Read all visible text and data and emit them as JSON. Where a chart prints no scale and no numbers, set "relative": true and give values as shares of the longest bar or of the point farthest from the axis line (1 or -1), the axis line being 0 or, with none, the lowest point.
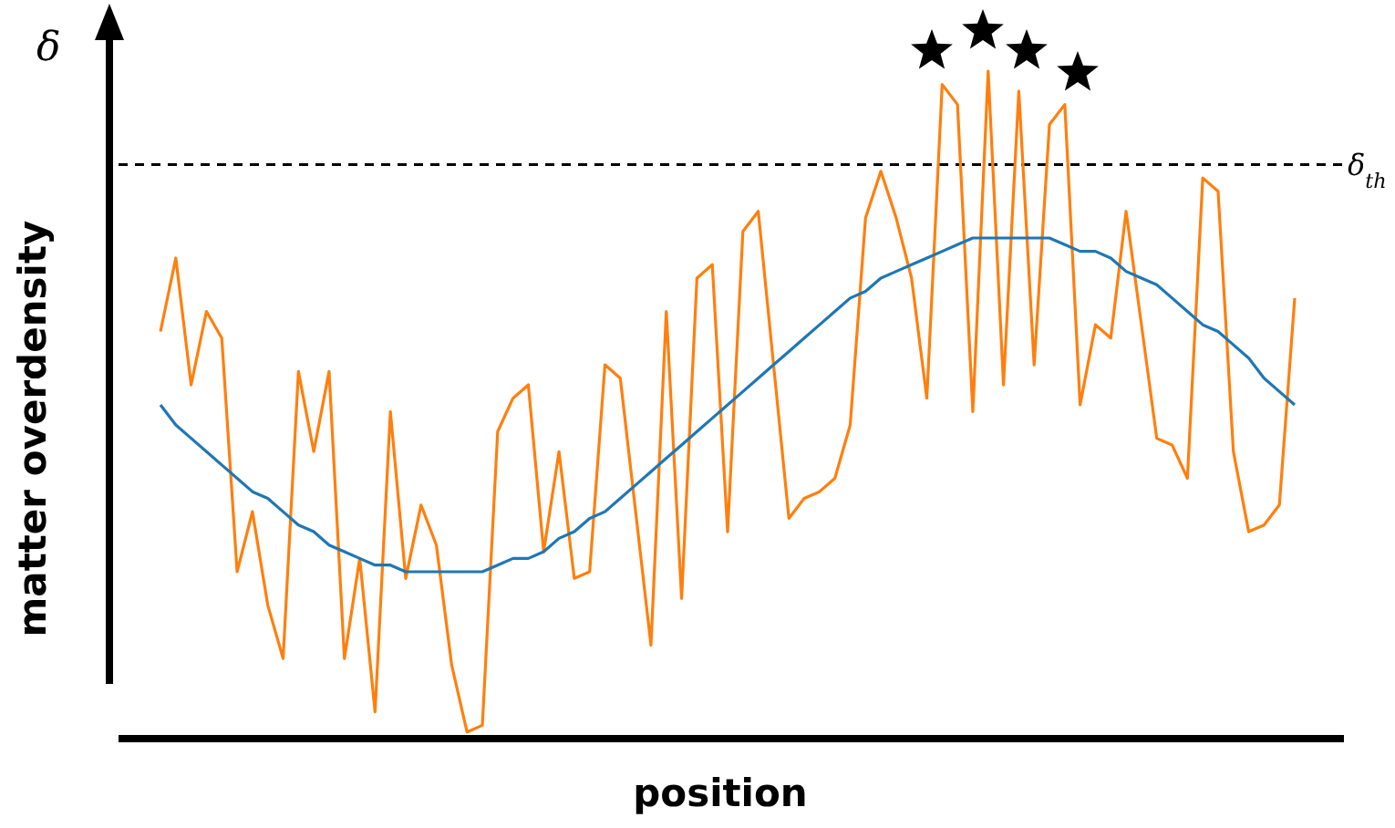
{
  "chart_data": {
    "type": "line",
    "xlabel": "position",
    "ylabel": "matter overdensity",
    "annotations": [
      "δ"
    ],
    "relative": true,
    "marker": "none",
    "categories": [
      null,
      null,
      null,
      null,
      null,
      null,
      null,
      null,
      null,
      null,
      null,
      null,
      null,
      null,
      null,
      null,
      null,
      null,
      null,
      null,
      null,
      null,
      null,
      null,
      null,
      null,
      null,
      null,
      null,
      null,
      null,
      null,
      null,
      null,
      null,
      null,
      null,
      null,
      null,
      null,
      null,
      null,
      null,
      null,
      null,
      null,
      null,
      null,
      null,
      null,
      null,
      null,
      null,
      null,
      null,
      null,
      null,
      null,
      null,
      null,
      null,
      null,
      null,
      null,
      null,
      null,
      null,
      null,
      null,
      null,
      null,
      null,
      null,
      null,
      null
    ],
    "series": [
      {
        "color": "#ff7f0e",
        "values": [
          0.61,
          0.72,
          0.53,
          0.64,
          0.6,
          0.25,
          0.34,
          0.2,
          0.12,
          0.55,
          0.43,
          0.55,
          0.12,
          0.27,
          0.04,
          0.49,
          0.24,
          0.35,
          0.29,
          0.11,
          0.01,
          0.02,
          0.46,
          0.51,
          0.53,
          0.28,
          0.43,
          0.24,
          0.25,
          0.56,
          0.54,
          0.34,
          0.14,
          0.64,
          0.21,
          0.69,
          0.71,
          0.31,
          0.76,
          0.79,
          0.56,
          0.33,
          0.36,
          0.37,
          0.39,
          0.47,
          0.78,
          0.85,
          0.78,
          0.69,
          0.51,
          0.98,
          0.95,
          0.49,
          1.0,
          0.53,
          0.97,
          0.56,
          0.92,
          0.95,
          0.5,
          0.62,
          0.6,
          0.79,
          0.62,
          0.45,
          0.44,
          0.39,
          0.84,
          0.82,
          0.43,
          0.31,
          0.32,
          0.35,
          0.66
        ]
      },
      {
        "color": "#1f77b4",
        "values": [
          0.5,
          0.47,
          0.45,
          0.43,
          0.41,
          0.39,
          0.37,
          0.36,
          0.34,
          0.32,
          0.31,
          0.29,
          0.28,
          0.27,
          0.26,
          0.26,
          0.25,
          0.25,
          0.25,
          0.25,
          0.25,
          0.25,
          0.26,
          0.27,
          0.27,
          0.28,
          0.3,
          0.31,
          0.33,
          0.34,
          0.36,
          0.38,
          0.4,
          0.42,
          0.44,
          0.46,
          0.48,
          0.5,
          0.52,
          0.54,
          0.56,
          0.58,
          0.6,
          0.62,
          0.64,
          0.66,
          0.67,
          0.69,
          0.7,
          0.71,
          0.72,
          0.73,
          0.74,
          0.75,
          0.75,
          0.75,
          0.75,
          0.75,
          0.75,
          0.74,
          0.73,
          0.73,
          0.72,
          0.7,
          0.69,
          0.68,
          0.66,
          0.64,
          0.62,
          0.61,
          0.59,
          0.57,
          0.54,
          0.52,
          0.5
        ]
      }
    ],
    "ref_lines": [
      {
        "axis": "y",
        "value": 0.86,
        "label": "δ$_{th}$",
        "color": "#000000",
        "line_style": "dashed"
      }
    ]
  }
}
